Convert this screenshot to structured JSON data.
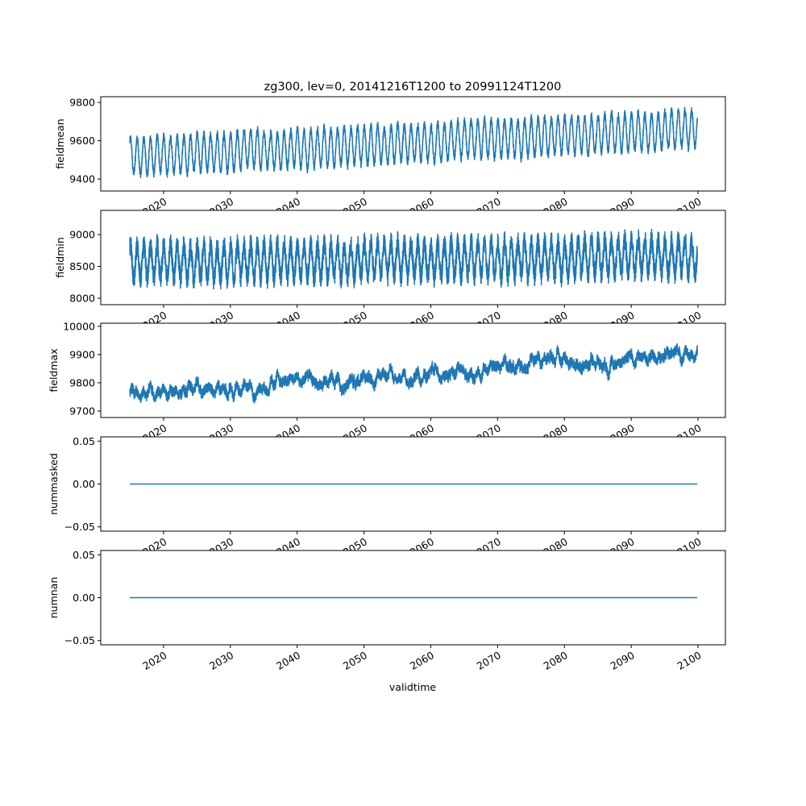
{
  "chart_data": {
    "type": "line",
    "title": "zg300, lev=0, 20141216T1200 to 20991124T1200",
    "xlabel": "validtime",
    "xlim": [
      2010.6,
      2104.1
    ],
    "x_range": [
      2014.96,
      2099.9
    ],
    "xticks": [
      2020,
      2030,
      2040,
      2050,
      2060,
      2070,
      2080,
      2090,
      2100
    ],
    "xtick_labels": [
      "2020",
      "2030",
      "2040",
      "2050",
      "2060",
      "2070",
      "2080",
      "2090",
      "2100"
    ],
    "line_color": "#1f77b4",
    "panels": [
      {
        "ylabel": "fieldmean",
        "ylim": [
          9337,
          9830
        ],
        "yticks": [
          9400,
          9600,
          9800
        ],
        "ytick_labels": [
          "9400",
          "9600",
          "9800"
        ],
        "series": {
          "trend_start": 9515,
          "trend_end": 9665,
          "seasonal_amplitude": 95,
          "noise": 22,
          "slow_variability": 10
        }
      },
      {
        "ylabel": "fieldmin",
        "ylim": [
          7899,
          9380
        ],
        "yticks": [
          8000,
          8500,
          9000
        ],
        "ytick_labels": [
          "8000",
          "8500",
          "9000"
        ],
        "series": {
          "trend_start": 8560,
          "trend_end": 8660,
          "seasonal_amplitude": 260,
          "noise": 170,
          "slow_variability": 30
        }
      },
      {
        "ylabel": "fieldmax",
        "ylim": [
          9677,
          10011
        ],
        "yticks": [
          9700,
          9800,
          9900,
          10000
        ],
        "ytick_labels": [
          "9700",
          "9800",
          "9900",
          "10000"
        ],
        "series": {
          "trend_start": 9760,
          "trend_end": 9905,
          "seasonal_amplitude": 8,
          "noise": 18,
          "slow_variability": 28
        }
      },
      {
        "ylabel": "nummasked",
        "ylim": [
          -0.055,
          0.055
        ],
        "yticks": [
          -0.05,
          0.0,
          0.05
        ],
        "ytick_labels": [
          "−0.05",
          "0.00",
          "0.05"
        ],
        "series": {
          "constant": 0
        }
      },
      {
        "ylabel": "numnan",
        "ylim": [
          -0.055,
          0.055
        ],
        "yticks": [
          -0.05,
          0.0,
          0.05
        ],
        "ytick_labels": [
          "−0.05",
          "0.00",
          "0.05"
        ],
        "series": {
          "constant": 0
        }
      }
    ]
  }
}
